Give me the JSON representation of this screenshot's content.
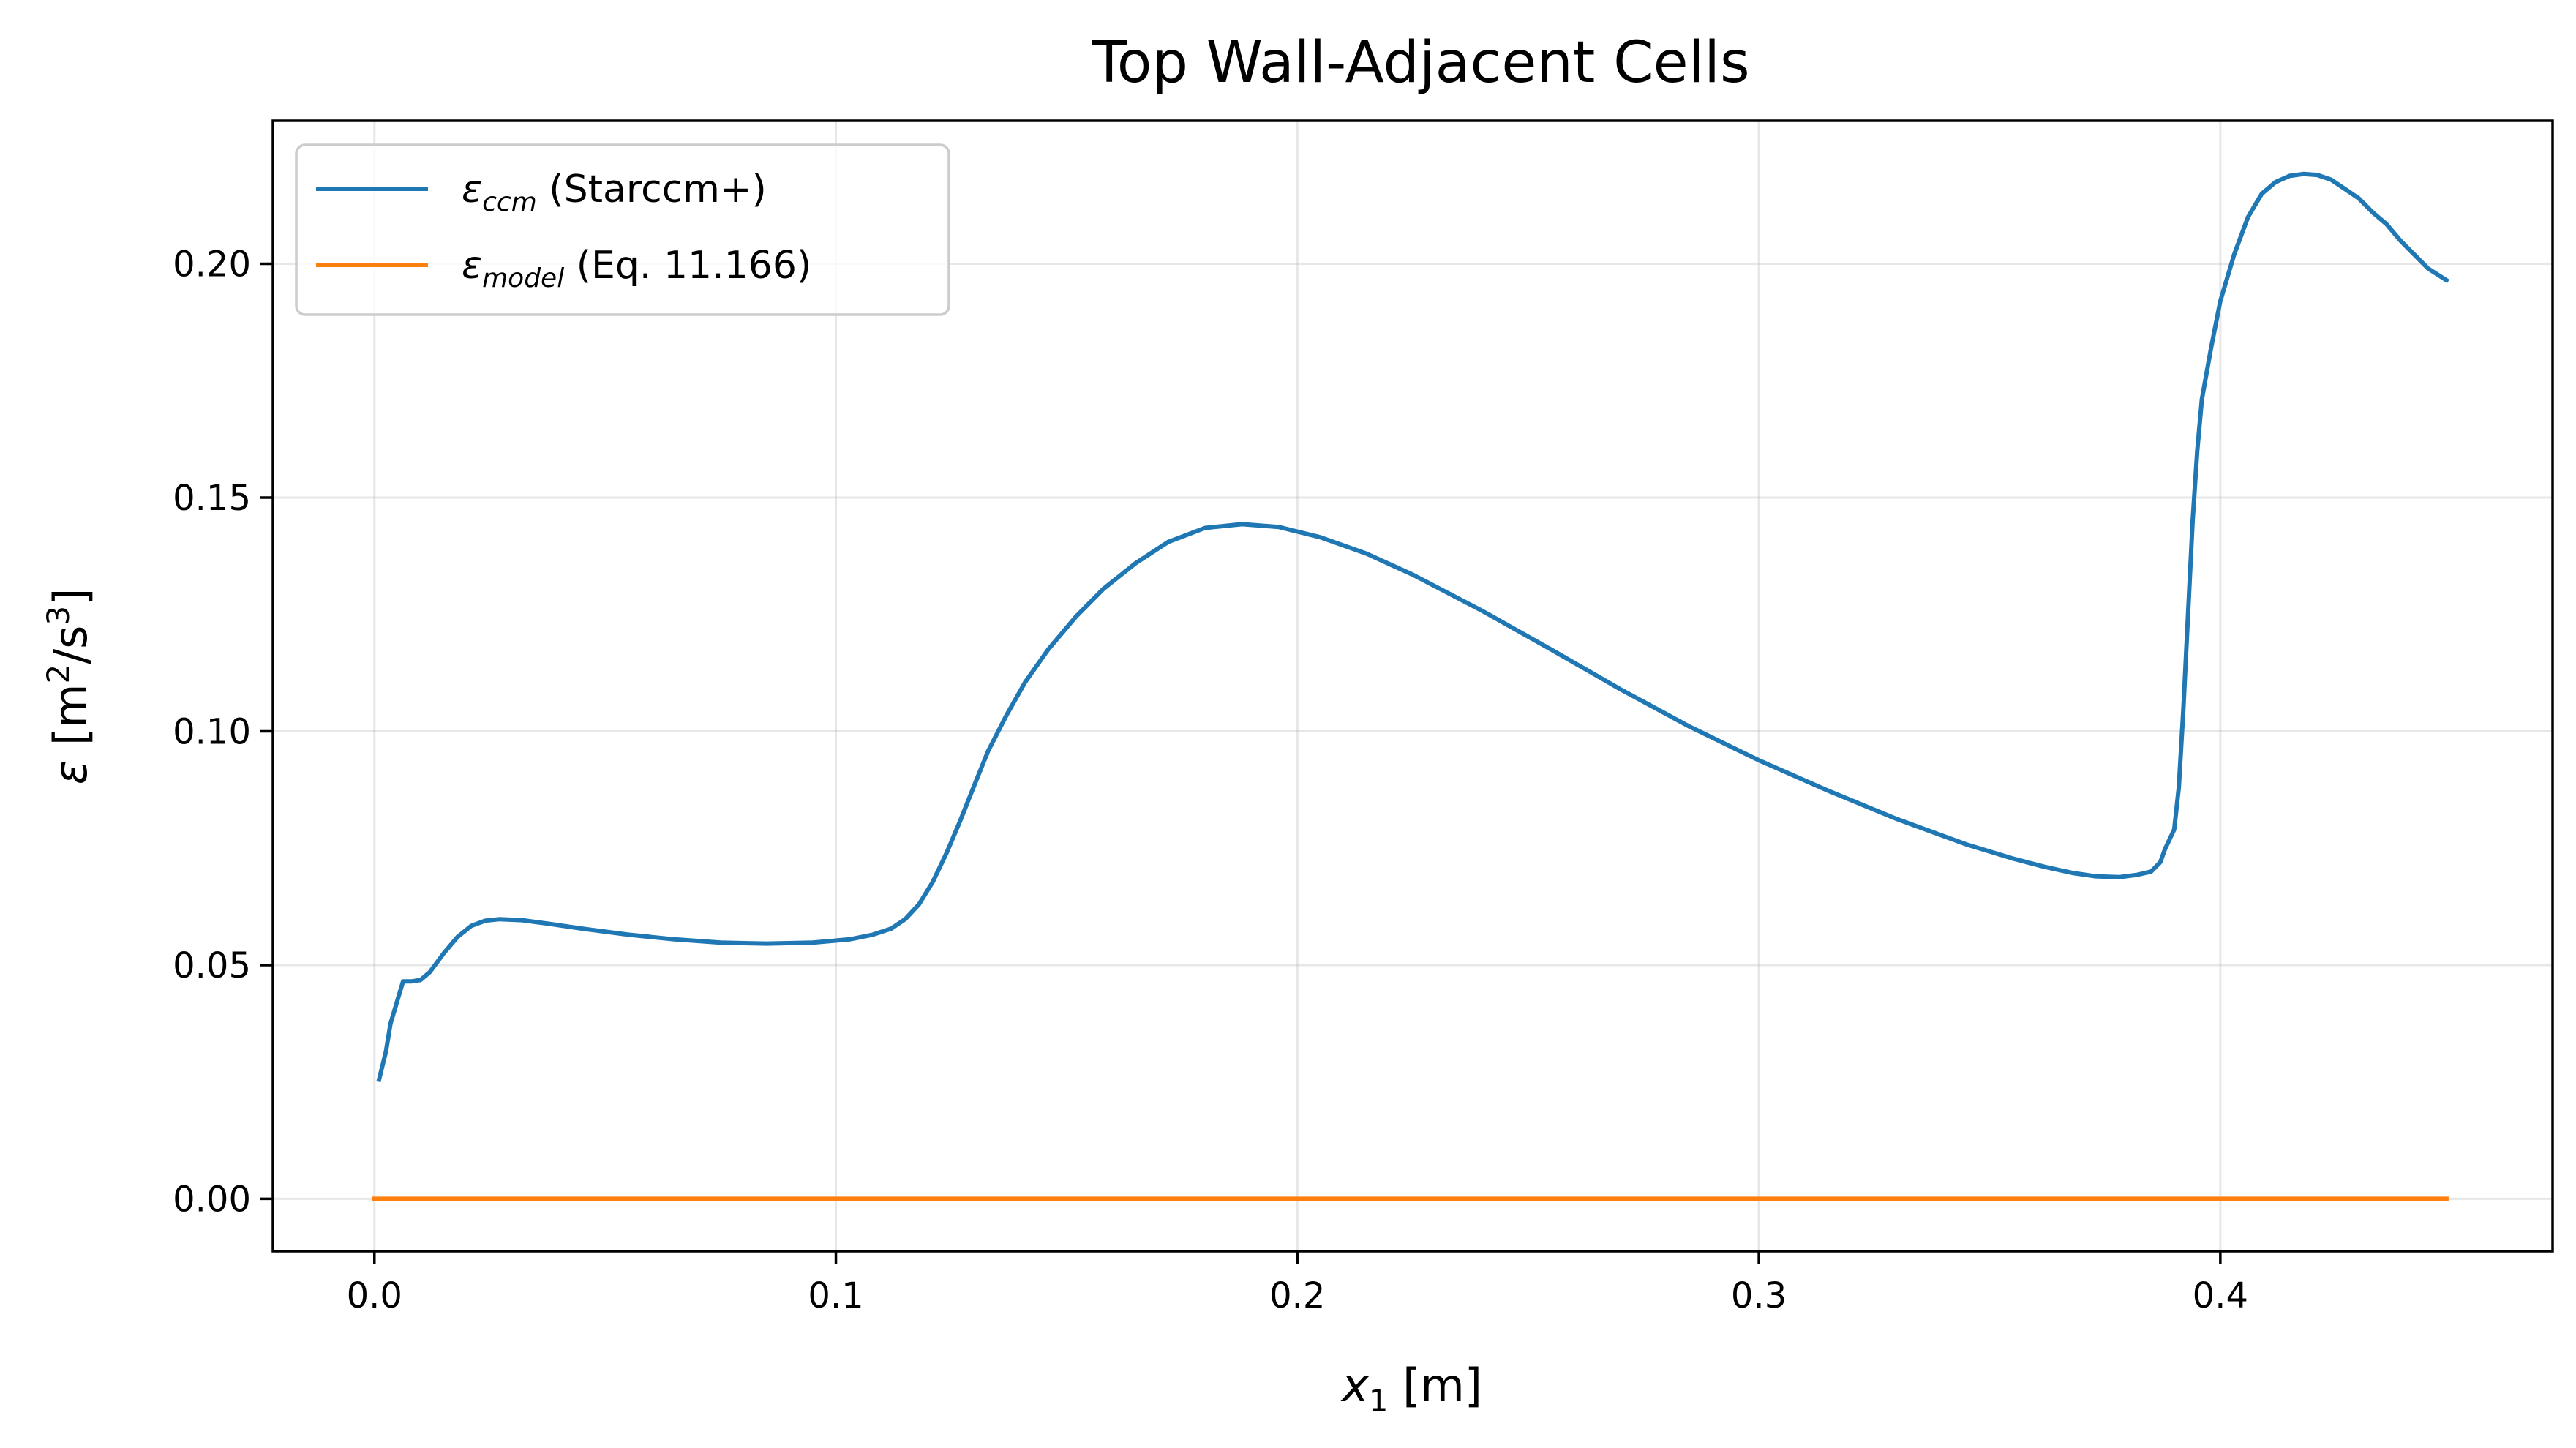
{
  "chart_data": {
    "type": "line",
    "title": "Top Wall-Adjacent Cells",
    "xlabel": {
      "var": "x",
      "sub": "1",
      "unit": " [m]"
    },
    "ylabel": {
      "var": "ε",
      "unit_open": " [m",
      "sup1": "2",
      "mid": "/s",
      "sup2": "3",
      "unit_close": "]"
    },
    "xlim": [
      -0.022,
      0.472
    ],
    "ylim": [
      -0.0112,
      0.2306
    ],
    "xticks": [
      0.0,
      0.1,
      0.2,
      0.3,
      0.4
    ],
    "xtick_labels": [
      "0.0",
      "0.1",
      "0.2",
      "0.3",
      "0.4"
    ],
    "yticks": [
      0.0,
      0.05,
      0.1,
      0.15,
      0.2
    ],
    "ytick_labels": [
      "0.00",
      "0.05",
      "0.10",
      "0.15",
      "0.20"
    ],
    "grid": true,
    "legend_position": "upper-left",
    "series": [
      {
        "name_sym": "ε",
        "name_sub": "ccm",
        "name_rest": " (Starccm+)",
        "color": "#1f77b4",
        "points": [
          [
            0.001,
            0.0255
          ],
          [
            0.0025,
            0.0315
          ],
          [
            0.0035,
            0.0375
          ],
          [
            0.005,
            0.0425
          ],
          [
            0.0062,
            0.0465
          ],
          [
            0.008,
            0.0465
          ],
          [
            0.01,
            0.0468
          ],
          [
            0.012,
            0.0485
          ],
          [
            0.015,
            0.0525
          ],
          [
            0.018,
            0.056
          ],
          [
            0.021,
            0.0584
          ],
          [
            0.024,
            0.0595
          ],
          [
            0.027,
            0.0598
          ],
          [
            0.032,
            0.0596
          ],
          [
            0.038,
            0.0588
          ],
          [
            0.045,
            0.0578
          ],
          [
            0.055,
            0.0565
          ],
          [
            0.065,
            0.0555
          ],
          [
            0.075,
            0.0548
          ],
          [
            0.085,
            0.0546
          ],
          [
            0.095,
            0.0548
          ],
          [
            0.103,
            0.0555
          ],
          [
            0.108,
            0.0565
          ],
          [
            0.112,
            0.0578
          ],
          [
            0.115,
            0.0598
          ],
          [
            0.118,
            0.063
          ],
          [
            0.121,
            0.0678
          ],
          [
            0.124,
            0.074
          ],
          [
            0.127,
            0.081
          ],
          [
            0.13,
            0.0885
          ],
          [
            0.133,
            0.0958
          ],
          [
            0.137,
            0.1035
          ],
          [
            0.141,
            0.1105
          ],
          [
            0.146,
            0.1175
          ],
          [
            0.152,
            0.1245
          ],
          [
            0.158,
            0.1305
          ],
          [
            0.165,
            0.136
          ],
          [
            0.172,
            0.1405
          ],
          [
            0.18,
            0.1435
          ],
          [
            0.188,
            0.1443
          ],
          [
            0.196,
            0.1437
          ],
          [
            0.205,
            0.1415
          ],
          [
            0.215,
            0.138
          ],
          [
            0.225,
            0.1335
          ],
          [
            0.24,
            0.1258
          ],
          [
            0.255,
            0.1175
          ],
          [
            0.27,
            0.109
          ],
          [
            0.285,
            0.101
          ],
          [
            0.3,
            0.0938
          ],
          [
            0.315,
            0.0873
          ],
          [
            0.33,
            0.0812
          ],
          [
            0.345,
            0.0758
          ],
          [
            0.355,
            0.0728
          ],
          [
            0.362,
            0.071
          ],
          [
            0.368,
            0.0697
          ],
          [
            0.373,
            0.069
          ],
          [
            0.378,
            0.0688
          ],
          [
            0.382,
            0.0693
          ],
          [
            0.385,
            0.07
          ],
          [
            0.387,
            0.072
          ],
          [
            0.388,
            0.0748
          ],
          [
            0.39,
            0.079
          ],
          [
            0.391,
            0.088
          ],
          [
            0.392,
            0.105
          ],
          [
            0.393,
            0.125
          ],
          [
            0.394,
            0.145
          ],
          [
            0.395,
            0.16
          ],
          [
            0.396,
            0.171
          ],
          [
            0.398,
            0.182
          ],
          [
            0.4,
            0.192
          ],
          [
            0.403,
            0.202
          ],
          [
            0.406,
            0.21
          ],
          [
            0.409,
            0.215
          ],
          [
            0.412,
            0.2175
          ],
          [
            0.415,
            0.2188
          ],
          [
            0.418,
            0.2192
          ],
          [
            0.421,
            0.219
          ],
          [
            0.424,
            0.218
          ],
          [
            0.427,
            0.216
          ],
          [
            0.43,
            0.214
          ],
          [
            0.433,
            0.211
          ],
          [
            0.436,
            0.2085
          ],
          [
            0.439,
            0.205
          ],
          [
            0.442,
            0.202
          ],
          [
            0.445,
            0.199
          ],
          [
            0.449,
            0.1965
          ]
        ]
      },
      {
        "name_sym": "ε",
        "name_sub": "model",
        "name_rest": " (Eq. 11.166)",
        "color": "#ff7f0e",
        "points": [
          [
            0.0,
            0.0
          ],
          [
            0.449,
            0.0
          ]
        ]
      }
    ]
  }
}
